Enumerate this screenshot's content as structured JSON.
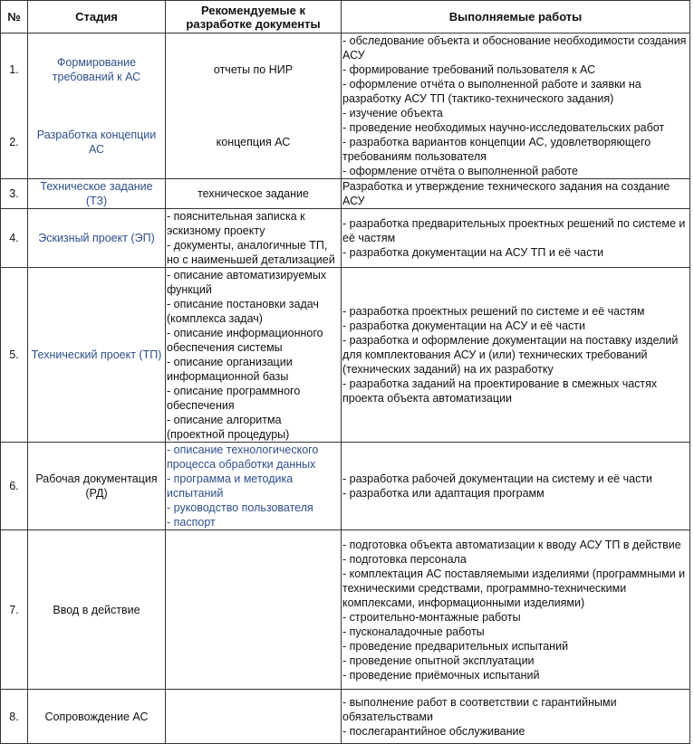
{
  "headers": {
    "num": "№",
    "stage": "Стадия",
    "docs": "Рекомендуемые к разработке документы",
    "works": "Выполняемые работы"
  },
  "colors": {
    "link": "#2e4f8c",
    "text": "#111111",
    "border": "#333333"
  },
  "rows": [
    {
      "num": "1.",
      "stage": "Формирование требований к АС",
      "stage_link": true,
      "docs": "отчеты по НИР",
      "docs_list": false,
      "works": [
        "- обследование объекта и обоснование необходимости создания АСУ",
        "- формирование требований пользователя к АС",
        "- оформление отчёта о выполненной работе и заявки на разработку АСУ ТП (тактико-технического задания)"
      ]
    },
    {
      "num": "2.",
      "stage": "Разработка концепции АС",
      "stage_link": true,
      "docs": "концепция АС",
      "docs_list": false,
      "works": [
        "- изучение объекта",
        "- проведение необходимых научно-исследовательских работ",
        "- разработка вариантов концепции АС, удовлетворяющего требованиям пользователя",
        "- оформление отчёта о выполненной работе"
      ]
    },
    {
      "num": "3.",
      "stage": "Техническое задание (ТЗ)",
      "stage_link": true,
      "docs": "техническое задание",
      "docs_list": false,
      "works": [
        "Разработка и утверждение технического задания на создание АСУ"
      ]
    },
    {
      "num": "4.",
      "stage": "Эскизный проект (ЭП)",
      "stage_link": true,
      "docs_list": true,
      "docs_items": [
        "- пояснительная записка к эскизному проекту",
        "- документы, аналогичные ТП, но с наименьшей детализацией"
      ],
      "works": [
        "- разработка предварительных проектных решений по системе и её частям",
        "- разработка документации на АСУ ТП и её части"
      ]
    },
    {
      "num": "5.",
      "stage": "Технический проект (ТП)",
      "stage_link": true,
      "docs_list": true,
      "docs_items": [
        "- описание автоматизируемых функций",
        "- описание постановки задач (комплекса задач)",
        "- описание информационного обеспечения системы",
        "- описание организации информационной базы",
        "- описание программного обеспечения",
        "- описание алгоритма (проектной процедуры)"
      ],
      "works": [
        "- разработка проектных решений по системе и её частям",
        "- разработка документации на АСУ и её части",
        "- разработка и оформление документации на поставку изделий для комплектования АСУ и (или) технических требований (технических заданий) на их разработку",
        "- разработка заданий на проектирование в смежных частях проекта объекта автоматизации"
      ]
    },
    {
      "num": "6.",
      "stage": "Рабочая документация (РД)",
      "stage_link": false,
      "docs_list": true,
      "docs_link": true,
      "docs_items": [
        "- описание технологического процесса обработки данных",
        "- программа и методика испытаний",
        "- руководство пользователя",
        "- паспорт"
      ],
      "works": [
        "- разработка рабочей документации на систему и её части",
        "- разработка или адаптация программ"
      ]
    },
    {
      "num": "7.",
      "stage": "Ввод в действие",
      "stage_link": false,
      "docs": "",
      "docs_list": false,
      "works": [
        "- подготовка объекта автоматизации к вводу АСУ ТП в действие",
        "- подготовка персонала",
        "- комплектация АС поставляемыми изделиями (программными и техническими средствами, программно-техническими комплексами, информационными изделиями)",
        "- строительно-монтажные работы",
        "- пусконаладочные работы",
        "- проведение предварительных испытаний",
        "- проведение опытной эксплуатации",
        "- проведение приёмочных испытаний"
      ]
    },
    {
      "num": "8.",
      "stage": "Сопровождение АС",
      "stage_link": false,
      "docs": "",
      "docs_list": false,
      "works": [
        "- выполнение работ в соответствии с гарантийными обязательствами",
        "- послегарантийное обслуживание"
      ]
    }
  ]
}
